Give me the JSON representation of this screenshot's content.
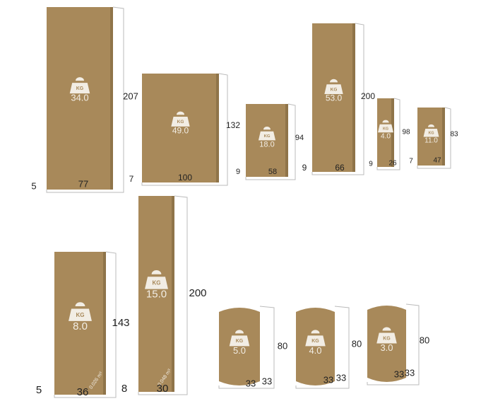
{
  "icon_label": "KG",
  "items": [
    {
      "weight": "34.0",
      "height": "207",
      "width": "77",
      "depth": "5"
    },
    {
      "weight": "49.0",
      "height": "132",
      "width": "100",
      "depth": "7"
    },
    {
      "weight": "18.0",
      "height": "94",
      "width": "58",
      "depth": "9"
    },
    {
      "weight": "53.0",
      "height": "200",
      "width": "66",
      "depth": "9"
    },
    {
      "weight": "4.0",
      "height": "98",
      "width": "26",
      "depth": "9"
    },
    {
      "weight": "11.0",
      "height": "83",
      "width": "47",
      "depth": "7"
    },
    {
      "weight": "8.0",
      "height": "143",
      "width": "36",
      "depth": "5",
      "volume": "0.026 m³"
    },
    {
      "weight": "15.0",
      "height": "200",
      "width": "30",
      "depth": "8",
      "volume": "0.048 m³"
    },
    {
      "weight": "5.0",
      "height": "80",
      "width": "33",
      "depth": "33"
    },
    {
      "weight": "4.0",
      "height": "80",
      "width": "33",
      "depth": "33"
    },
    {
      "weight": "3.0",
      "height": "80",
      "width": "33",
      "depth": "33"
    }
  ]
}
